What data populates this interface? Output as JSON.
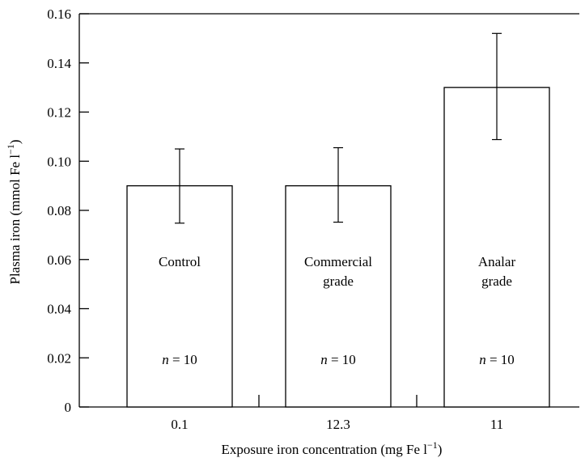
{
  "chart_data": {
    "type": "bar",
    "categories": [
      "0.1",
      "12.3",
      "11"
    ],
    "values": [
      0.09,
      0.09,
      0.13
    ],
    "errors": [
      {
        "low": 0.0748,
        "high": 0.105
      },
      {
        "low": 0.0752,
        "high": 0.1055
      },
      {
        "low": 0.1088,
        "high": 0.152
      }
    ],
    "bar_labels": [
      [
        "Control"
      ],
      [
        "Commercial",
        "grade"
      ],
      [
        "Analar",
        "grade"
      ]
    ],
    "n_labels": [
      {
        "var": "n",
        "rest": " = 10"
      },
      {
        "var": "n",
        "rest": " = 10"
      },
      {
        "var": "n",
        "rest": " = 10"
      }
    ],
    "xlabel": {
      "text": "Exposure iron concentration (mg Fe l",
      "sup": "−1",
      "close": ")"
    },
    "ylabel": {
      "text": "Plasma iron (mmol Fe l",
      "sup": "−1",
      "close": ")"
    },
    "ylim": [
      0,
      0.16
    ],
    "yticks": [
      "0",
      "0.02",
      "0.04",
      "0.06",
      "0.08",
      "0.10",
      "0.12",
      "0.14",
      "0.16"
    ],
    "grid": false,
    "bar_fill": "#ffffff",
    "line_color": "#000000"
  }
}
